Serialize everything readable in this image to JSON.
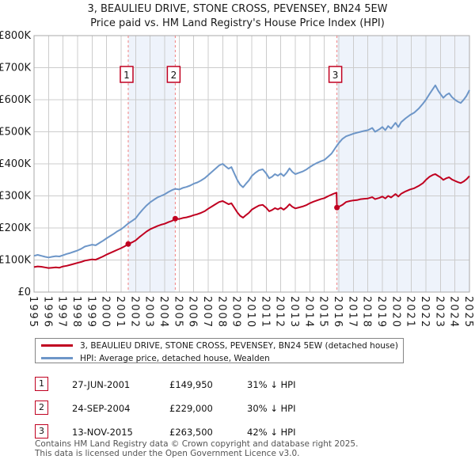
{
  "chart_data": {
    "type": "line",
    "title": "3, BEAULIEU DRIVE, STONE CROSS, PEVENSEY, BN24 5EW",
    "subtitle": "Price paid vs. HM Land Registry's House Price Index (HPI)",
    "y_units": "GBP thousands",
    "ylim": [
      0,
      800
    ],
    "yticks": [
      0,
      100,
      200,
      300,
      400,
      500,
      600,
      700,
      800
    ],
    "ytick_labels": [
      "£0",
      "£100K",
      "£200K",
      "£300K",
      "£400K",
      "£500K",
      "£600K",
      "£700K",
      "£800K"
    ],
    "x_years": [
      1995,
      1996,
      1997,
      1998,
      1999,
      2000,
      2001,
      2002,
      2003,
      2004,
      2005,
      2006,
      2007,
      2008,
      2009,
      2010,
      2011,
      2012,
      2013,
      2014,
      2015,
      2016,
      2017,
      2018,
      2019,
      2020,
      2021,
      2022,
      2023,
      2024,
      2025
    ],
    "grid": true,
    "legend_position": "below",
    "colors": {
      "grid": "#cccccc",
      "border": "#aaaaaa",
      "shade": "#eef3fb",
      "dashed_line": "#f08080",
      "price_paid": "#c00020",
      "hpi": "#6d96c8"
    },
    "series": [
      {
        "name": "3, BEAULIEU DRIVE, STONE CROSS, PEVENSEY, BN24 5EW (detached house)",
        "color": "#c00020",
        "points": [
          [
            1995,
            78
          ],
          [
            1995.25,
            80
          ],
          [
            1995.5,
            79
          ],
          [
            1995.75,
            77
          ],
          [
            1996,
            75
          ],
          [
            1996.25,
            76
          ],
          [
            1996.5,
            77
          ],
          [
            1996.75,
            76
          ],
          [
            1997,
            80
          ],
          [
            1997.25,
            82
          ],
          [
            1997.5,
            85
          ],
          [
            1997.75,
            88
          ],
          [
            1998,
            91
          ],
          [
            1998.25,
            94
          ],
          [
            1998.5,
            98
          ],
          [
            1998.75,
            100
          ],
          [
            1999,
            102
          ],
          [
            1999.25,
            101
          ],
          [
            1999.5,
            106
          ],
          [
            1999.75,
            111
          ],
          [
            2000,
            117
          ],
          [
            2000.25,
            122
          ],
          [
            2000.5,
            127
          ],
          [
            2000.75,
            132
          ],
          [
            2001,
            137
          ],
          [
            2001.25,
            143
          ],
          [
            2001.49,
            149.95
          ],
          [
            2001.75,
            155
          ],
          [
            2002,
            161
          ],
          [
            2002.25,
            171
          ],
          [
            2002.5,
            180
          ],
          [
            2002.75,
            189
          ],
          [
            2003,
            196
          ],
          [
            2003.25,
            201
          ],
          [
            2003.5,
            206
          ],
          [
            2003.75,
            210
          ],
          [
            2004,
            213
          ],
          [
            2004.25,
            218
          ],
          [
            2004.5,
            222
          ],
          [
            2004.73,
            229
          ],
          [
            2005,
            228
          ],
          [
            2005.25,
            231
          ],
          [
            2005.5,
            233
          ],
          [
            2005.75,
            236
          ],
          [
            2006,
            240
          ],
          [
            2006.25,
            243
          ],
          [
            2006.5,
            247
          ],
          [
            2006.75,
            252
          ],
          [
            2007,
            260
          ],
          [
            2007.25,
            267
          ],
          [
            2007.5,
            274
          ],
          [
            2007.75,
            281
          ],
          [
            2008,
            284
          ],
          [
            2008.2,
            279
          ],
          [
            2008.4,
            274
          ],
          [
            2008.6,
            277
          ],
          [
            2008.8,
            263
          ],
          [
            2009,
            249
          ],
          [
            2009.2,
            238
          ],
          [
            2009.4,
            232
          ],
          [
            2009.6,
            240
          ],
          [
            2009.8,
            247
          ],
          [
            2010,
            257
          ],
          [
            2010.25,
            264
          ],
          [
            2010.5,
            270
          ],
          [
            2010.75,
            272
          ],
          [
            2011,
            263
          ],
          [
            2011.2,
            252
          ],
          [
            2011.4,
            256
          ],
          [
            2011.6,
            262
          ],
          [
            2011.8,
            258
          ],
          [
            2012,
            263
          ],
          [
            2012.2,
            257
          ],
          [
            2012.4,
            264
          ],
          [
            2012.6,
            274
          ],
          [
            2012.8,
            266
          ],
          [
            2013,
            261
          ],
          [
            2013.25,
            264
          ],
          [
            2013.5,
            267
          ],
          [
            2013.75,
            271
          ],
          [
            2014,
            277
          ],
          [
            2014.25,
            282
          ],
          [
            2014.5,
            286
          ],
          [
            2014.75,
            290
          ],
          [
            2015,
            293
          ],
          [
            2015.3,
            300
          ],
          [
            2015.6,
            306
          ],
          [
            2015.84,
            310
          ],
          [
            2015.87,
            263.5
          ],
          [
            2016,
            266
          ],
          [
            2016.25,
            272
          ],
          [
            2016.5,
            281
          ],
          [
            2016.75,
            284
          ],
          [
            2017,
            286
          ],
          [
            2017.25,
            287
          ],
          [
            2017.5,
            290
          ],
          [
            2017.75,
            291
          ],
          [
            2018,
            292
          ],
          [
            2018.3,
            296
          ],
          [
            2018.5,
            290
          ],
          [
            2018.8,
            294
          ],
          [
            2019,
            298
          ],
          [
            2019.2,
            292
          ],
          [
            2019.4,
            300
          ],
          [
            2019.6,
            295
          ],
          [
            2019.9,
            306
          ],
          [
            2020.1,
            298
          ],
          [
            2020.3,
            307
          ],
          [
            2020.6,
            314
          ],
          [
            2020.9,
            320
          ],
          [
            2021.2,
            324
          ],
          [
            2021.5,
            331
          ],
          [
            2021.8,
            340
          ],
          [
            2022,
            350
          ],
          [
            2022.25,
            360
          ],
          [
            2022.5,
            366
          ],
          [
            2022.65,
            368
          ],
          [
            2022.85,
            362
          ],
          [
            2023,
            358
          ],
          [
            2023.2,
            350
          ],
          [
            2023.4,
            355
          ],
          [
            2023.6,
            358
          ],
          [
            2023.8,
            351
          ],
          [
            2024,
            347
          ],
          [
            2024.2,
            343
          ],
          [
            2024.4,
            340
          ],
          [
            2024.6,
            345
          ],
          [
            2024.8,
            352
          ],
          [
            2025,
            362
          ]
        ]
      },
      {
        "name": "HPI: Average price, detached house, Wealden",
        "color": "#6d96c8",
        "points": [
          [
            1995,
            113
          ],
          [
            1995.25,
            116
          ],
          [
            1995.5,
            113
          ],
          [
            1995.75,
            110
          ],
          [
            1996,
            108
          ],
          [
            1996.25,
            110
          ],
          [
            1996.5,
            112
          ],
          [
            1996.75,
            111
          ],
          [
            1997,
            115
          ],
          [
            1997.25,
            119
          ],
          [
            1997.5,
            122
          ],
          [
            1997.75,
            126
          ],
          [
            1998,
            130
          ],
          [
            1998.25,
            135
          ],
          [
            1998.5,
            142
          ],
          [
            1998.75,
            145
          ],
          [
            1999,
            148
          ],
          [
            1999.25,
            146
          ],
          [
            1999.5,
            153
          ],
          [
            1999.75,
            160
          ],
          [
            2000,
            168
          ],
          [
            2000.25,
            175
          ],
          [
            2000.5,
            182
          ],
          [
            2000.75,
            190
          ],
          [
            2001,
            196
          ],
          [
            2001.25,
            205
          ],
          [
            2001.49,
            214
          ],
          [
            2001.75,
            222
          ],
          [
            2002,
            230
          ],
          [
            2002.25,
            245
          ],
          [
            2002.5,
            258
          ],
          [
            2002.75,
            270
          ],
          [
            2003,
            280
          ],
          [
            2003.25,
            288
          ],
          [
            2003.5,
            295
          ],
          [
            2003.75,
            300
          ],
          [
            2004,
            305
          ],
          [
            2004.25,
            312
          ],
          [
            2004.5,
            318
          ],
          [
            2004.73,
            322
          ],
          [
            2005,
            320
          ],
          [
            2005.25,
            325
          ],
          [
            2005.5,
            328
          ],
          [
            2005.75,
            332
          ],
          [
            2006,
            338
          ],
          [
            2006.25,
            342
          ],
          [
            2006.5,
            348
          ],
          [
            2006.75,
            355
          ],
          [
            2007,
            365
          ],
          [
            2007.25,
            375
          ],
          [
            2007.5,
            385
          ],
          [
            2007.75,
            395
          ],
          [
            2008,
            400
          ],
          [
            2008.2,
            392
          ],
          [
            2008.4,
            385
          ],
          [
            2008.6,
            390
          ],
          [
            2008.8,
            370
          ],
          [
            2009,
            350
          ],
          [
            2009.2,
            335
          ],
          [
            2009.4,
            327
          ],
          [
            2009.6,
            338
          ],
          [
            2009.8,
            348
          ],
          [
            2010,
            362
          ],
          [
            2010.25,
            372
          ],
          [
            2010.5,
            380
          ],
          [
            2010.75,
            383
          ],
          [
            2011,
            370
          ],
          [
            2011.2,
            355
          ],
          [
            2011.4,
            360
          ],
          [
            2011.6,
            368
          ],
          [
            2011.8,
            363
          ],
          [
            2012,
            370
          ],
          [
            2012.2,
            362
          ],
          [
            2012.4,
            372
          ],
          [
            2012.6,
            386
          ],
          [
            2012.8,
            375
          ],
          [
            2013,
            368
          ],
          [
            2013.25,
            372
          ],
          [
            2013.5,
            376
          ],
          [
            2013.75,
            382
          ],
          [
            2014,
            390
          ],
          [
            2014.25,
            397
          ],
          [
            2014.5,
            403
          ],
          [
            2014.75,
            408
          ],
          [
            2015,
            412
          ],
          [
            2015.25,
            422
          ],
          [
            2015.5,
            432
          ],
          [
            2015.87,
            457
          ],
          [
            2016,
            465
          ],
          [
            2016.25,
            478
          ],
          [
            2016.5,
            486
          ],
          [
            2016.75,
            490
          ],
          [
            2017,
            494
          ],
          [
            2017.25,
            497
          ],
          [
            2017.5,
            500
          ],
          [
            2017.75,
            503
          ],
          [
            2018,
            505
          ],
          [
            2018.3,
            512
          ],
          [
            2018.5,
            500
          ],
          [
            2018.8,
            508
          ],
          [
            2019,
            515
          ],
          [
            2019.2,
            505
          ],
          [
            2019.4,
            518
          ],
          [
            2019.6,
            510
          ],
          [
            2019.9,
            528
          ],
          [
            2020.1,
            515
          ],
          [
            2020.3,
            530
          ],
          [
            2020.6,
            542
          ],
          [
            2020.9,
            552
          ],
          [
            2021.2,
            560
          ],
          [
            2021.5,
            572
          ],
          [
            2021.8,
            588
          ],
          [
            2022,
            600
          ],
          [
            2022.25,
            618
          ],
          [
            2022.5,
            635
          ],
          [
            2022.65,
            645
          ],
          [
            2022.85,
            628
          ],
          [
            2023,
            618
          ],
          [
            2023.2,
            606
          ],
          [
            2023.4,
            615
          ],
          [
            2023.6,
            620
          ],
          [
            2023.8,
            608
          ],
          [
            2024,
            600
          ],
          [
            2024.2,
            594
          ],
          [
            2024.4,
            590
          ],
          [
            2024.6,
            600
          ],
          [
            2024.8,
            612
          ],
          [
            2025,
            630
          ]
        ]
      }
    ],
    "sales_markers": [
      {
        "label": "1",
        "x": 2001.49,
        "value": 149.95
      },
      {
        "label": "2",
        "x": 2004.73,
        "value": 229
      },
      {
        "label": "3",
        "x": 2015.87,
        "value": 263.5
      }
    ],
    "shaded_regions": [
      [
        2001.49,
        2004.73
      ],
      [
        2015.87,
        2025
      ]
    ]
  },
  "legend": {
    "items": [
      {
        "label": "3, BEAULIEU DRIVE, STONE CROSS, PEVENSEY, BN24 5EW (detached house)"
      },
      {
        "label": "HPI: Average price, detached house, Wealden"
      }
    ]
  },
  "table": {
    "rows": [
      {
        "num": "1",
        "date": "27-JUN-2001",
        "price": "£149,950",
        "hpi": "31% ↓ HPI"
      },
      {
        "num": "2",
        "date": "24-SEP-2004",
        "price": "£229,000",
        "hpi": "30% ↓ HPI"
      },
      {
        "num": "3",
        "date": "13-NOV-2015",
        "price": "£263,500",
        "hpi": "42% ↓ HPI"
      }
    ]
  },
  "footer": {
    "line1": "Contains HM Land Registry data © Crown copyright and database right 2025.",
    "line2": "This data is licensed under the Open Government Licence v3.0."
  }
}
